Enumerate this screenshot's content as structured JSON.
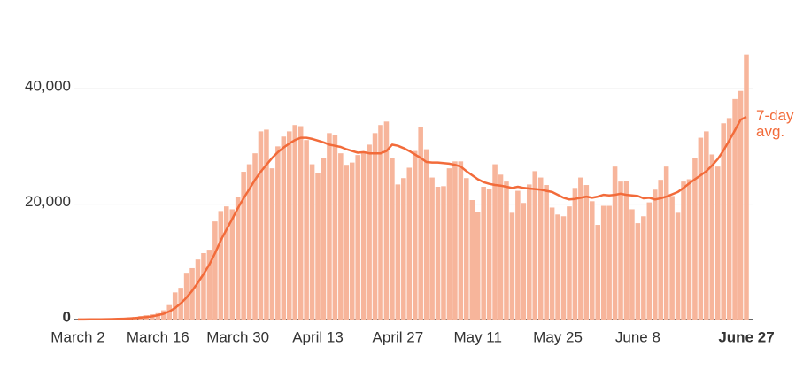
{
  "chart_data": {
    "type": "bar-line",
    "categories": [
      "March 2",
      null,
      null,
      null,
      null,
      null,
      null,
      null,
      null,
      null,
      null,
      null,
      null,
      null,
      "March 16",
      null,
      null,
      null,
      null,
      null,
      null,
      null,
      null,
      null,
      null,
      null,
      null,
      null,
      "March 30",
      null,
      null,
      null,
      null,
      null,
      null,
      null,
      null,
      null,
      null,
      null,
      null,
      null,
      "April 13",
      null,
      null,
      null,
      null,
      null,
      null,
      null,
      null,
      null,
      null,
      null,
      null,
      null,
      "April 27",
      null,
      null,
      null,
      null,
      null,
      null,
      null,
      null,
      null,
      null,
      null,
      null,
      null,
      "May 11",
      null,
      null,
      null,
      null,
      null,
      null,
      null,
      null,
      null,
      null,
      null,
      null,
      null,
      "May 25",
      null,
      null,
      null,
      null,
      null,
      null,
      null,
      null,
      null,
      null,
      null,
      null,
      null,
      "June 8",
      null,
      null,
      null,
      null,
      null,
      null,
      null,
      null,
      null,
      null,
      null,
      null,
      null,
      null,
      null,
      null,
      null,
      null,
      "June 27"
    ],
    "series": [
      {
        "color": "#f7b59b",
        "kind": "bar",
        "values": [
          20,
          25,
          30,
          40,
          60,
          80,
          120,
          180,
          250,
          350,
          450,
          600,
          750,
          900,
          1100,
          1600,
          2500,
          4700,
          5500,
          8100,
          8900,
          10400,
          11500,
          12100,
          17000,
          18800,
          19600,
          19100,
          21300,
          25600,
          26900,
          28800,
          32600,
          32900,
          26200,
          30000,
          31700,
          32600,
          33700,
          33500,
          31100,
          26900,
          25300,
          28000,
          32300,
          32000,
          28800,
          26800,
          27200,
          28500,
          28900,
          30300,
          32300,
          33700,
          34300,
          28000,
          23400,
          24500,
          26300,
          29200,
          33400,
          29500,
          24600,
          23000,
          23100,
          26200,
          27400,
          27400,
          24500,
          20700,
          18700,
          23000,
          22600,
          26900,
          25100,
          23900,
          18500,
          22300,
          20200,
          23400,
          25700,
          24600,
          23300,
          19400,
          18200,
          17900,
          19600,
          22800,
          24600,
          23300,
          20500,
          16400,
          19700,
          19700,
          26500,
          23900,
          24000,
          19100,
          16700,
          17900,
          20300,
          22500,
          24200,
          26500,
          21400,
          18500,
          23900,
          24300,
          28000,
          31500,
          32600,
          28600,
          26500,
          34000,
          34900,
          38200,
          39600,
          45900
        ]
      },
      {
        "name": "7-day avg.",
        "color": "#f26b3a",
        "kind": "line",
        "values": [
          20,
          22,
          25,
          30,
          40,
          55,
          75,
          100,
          140,
          190,
          250,
          330,
          430,
          550,
          750,
          1000,
          1400,
          2000,
          2800,
          3800,
          5000,
          6400,
          7900,
          9500,
          11500,
          13700,
          15600,
          17400,
          19300,
          21000,
          22600,
          24200,
          25600,
          26800,
          28000,
          29000,
          29800,
          30500,
          31100,
          31500,
          31500,
          31300,
          31000,
          30700,
          30300,
          30100,
          29900,
          29500,
          29200,
          28900,
          29000,
          28800,
          28800,
          28800,
          29200,
          30300,
          30100,
          29700,
          29200,
          28600,
          28000,
          27300,
          27200,
          27200,
          27100,
          27000,
          26800,
          26500,
          25700,
          25000,
          24300,
          23800,
          23500,
          23300,
          23200,
          23000,
          22800,
          23000,
          22800,
          22700,
          22600,
          22500,
          22300,
          22100,
          21600,
          21100,
          20800,
          20900,
          21100,
          21300,
          21100,
          21300,
          21600,
          21500,
          21600,
          21800,
          21600,
          21500,
          21400,
          21000,
          21100,
          20800,
          21000,
          21300,
          21700,
          22100,
          22800,
          23600,
          24300,
          25000,
          25700,
          26700,
          27800,
          29300,
          31000,
          32800,
          34600,
          35100
        ]
      }
    ],
    "ylim": [
      0,
      46000
    ],
    "yticks": [
      0,
      {
        "value": 20000,
        "label": "20,000"
      },
      {
        "value": 40000,
        "label": "40,000"
      }
    ],
    "grid": true
  }
}
